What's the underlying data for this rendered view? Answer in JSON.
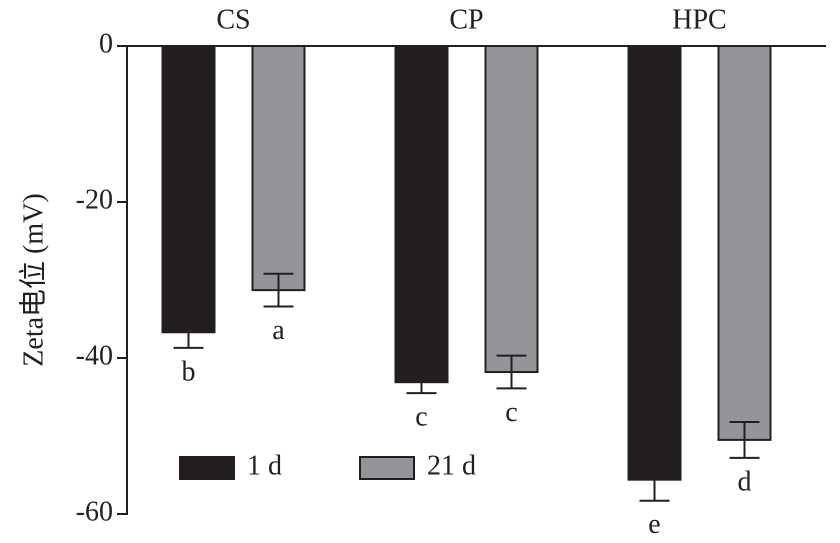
{
  "chart_data": {
    "type": "bar",
    "y_label": "Zeta电位 (mV)",
    "categories": [
      "CS",
      "CP",
      "HPC"
    ],
    "series": [
      {
        "name": "1 d",
        "color": "#231f20",
        "values": [
          -36.7,
          -43.1,
          -55.6
        ],
        "errors": [
          2.0,
          1.4,
          2.7
        ],
        "labels": [
          "b",
          "c",
          "e"
        ]
      },
      {
        "name": "21 d",
        "color": "#939598",
        "values": [
          -31.3,
          -41.8,
          -50.5
        ],
        "errors": [
          2.1,
          2.1,
          2.3
        ],
        "labels": [
          "a",
          "c",
          "d"
        ]
      }
    ],
    "ylim": [
      0,
      -60
    ],
    "yticks": [
      0,
      -20,
      -40,
      -60
    ]
  }
}
